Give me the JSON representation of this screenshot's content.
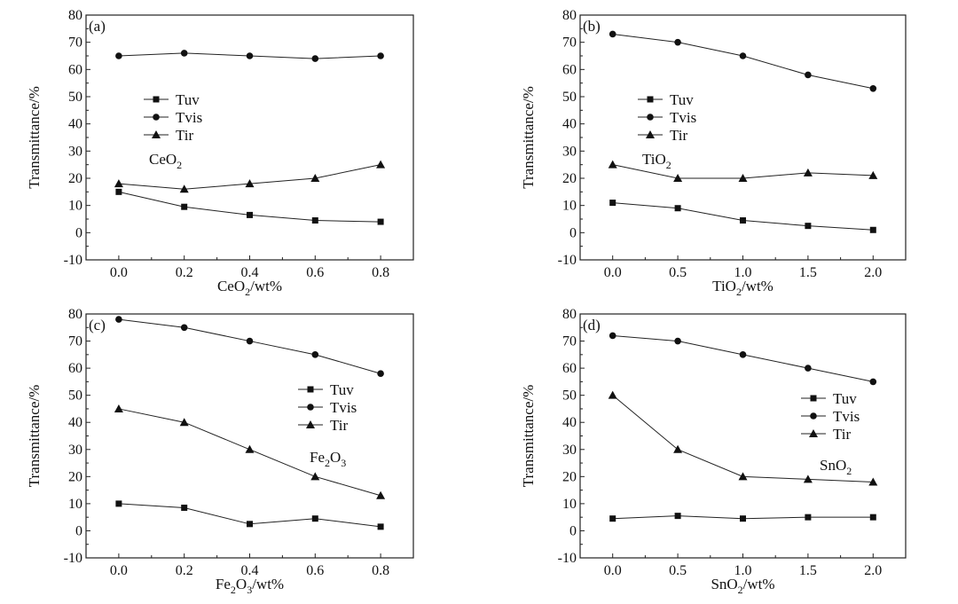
{
  "chart_data": [
    {
      "type": "line",
      "panel_label": "(a)",
      "compound": "CeO2",
      "xlabel": "CeO2/wt%",
      "ylabel": "Transmittance/%",
      "x": [
        0.0,
        0.2,
        0.4,
        0.6,
        0.8
      ],
      "xticks": [
        "0.0",
        "0.2",
        "0.4",
        "0.6",
        "0.8"
      ],
      "xlim": [
        -0.1,
        0.9
      ],
      "ylim": [
        -10,
        80
      ],
      "yticks": [
        "-10",
        "0",
        "10",
        "20",
        "30",
        "40",
        "50",
        "60",
        "70",
        "80"
      ],
      "legend": [
        "Tuv",
        "Tvis",
        "Tir"
      ],
      "series": [
        {
          "name": "Tuv",
          "marker": "square",
          "values": [
            15,
            9.5,
            6.5,
            4.5,
            4
          ]
        },
        {
          "name": "Tvis",
          "marker": "circle",
          "values": [
            65,
            66,
            65,
            64,
            65
          ]
        },
        {
          "name": "Tir",
          "marker": "triangle",
          "values": [
            18,
            16,
            18,
            20,
            25
          ]
        }
      ]
    },
    {
      "type": "line",
      "panel_label": "(b)",
      "compound": "TiO2",
      "xlabel": "TiO2/wt%",
      "ylabel": "Transmittance/%",
      "x": [
        0.0,
        0.5,
        1.0,
        1.5,
        2.0
      ],
      "xticks": [
        "0.0",
        "0.5",
        "1.0",
        "1.5",
        "2.0"
      ],
      "xlim": [
        -0.25,
        2.25
      ],
      "ylim": [
        -10,
        80
      ],
      "yticks": [
        "-10",
        "0",
        "10",
        "20",
        "30",
        "40",
        "50",
        "60",
        "70",
        "80"
      ],
      "legend": [
        "Tuv",
        "Tvis",
        "Tir"
      ],
      "series": [
        {
          "name": "Tuv",
          "marker": "square",
          "values": [
            11,
            9,
            4.5,
            2.5,
            1
          ]
        },
        {
          "name": "Tvis",
          "marker": "circle",
          "values": [
            73,
            70,
            65,
            58,
            53
          ]
        },
        {
          "name": "Tir",
          "marker": "triangle",
          "values": [
            25,
            20,
            20,
            22,
            21
          ]
        }
      ]
    },
    {
      "type": "line",
      "panel_label": "(c)",
      "compound": "Fe2O3",
      "xlabel": "Fe2O3/wt%",
      "ylabel": "Transmittance/%",
      "x": [
        0.0,
        0.2,
        0.4,
        0.6,
        0.8
      ],
      "xticks": [
        "0.0",
        "0.2",
        "0.4",
        "0.6",
        "0.8"
      ],
      "xlim": [
        -0.1,
        0.9
      ],
      "ylim": [
        -10,
        80
      ],
      "yticks": [
        "-10",
        "0",
        "10",
        "20",
        "30",
        "40",
        "50",
        "60",
        "70",
        "80"
      ],
      "legend": [
        "Tuv",
        "Tvis",
        "Tir"
      ],
      "series": [
        {
          "name": "Tuv",
          "marker": "square",
          "values": [
            10,
            8.5,
            2.5,
            4.5,
            1.5
          ]
        },
        {
          "name": "Tvis",
          "marker": "circle",
          "values": [
            78,
            75,
            70,
            65,
            58
          ]
        },
        {
          "name": "Tir",
          "marker": "triangle",
          "values": [
            45,
            40,
            30,
            20,
            13
          ]
        }
      ]
    },
    {
      "type": "line",
      "panel_label": "(d)",
      "compound": "SnO2",
      "xlabel": "SnO2/wt%",
      "ylabel": "Transmittance/%",
      "x": [
        0.0,
        0.5,
        1.0,
        1.5,
        2.0
      ],
      "xticks": [
        "0.0",
        "0.5",
        "1.0",
        "1.5",
        "2.0"
      ],
      "xlim": [
        -0.25,
        2.25
      ],
      "ylim": [
        -10,
        80
      ],
      "yticks": [
        "-10",
        "0",
        "10",
        "20",
        "30",
        "40",
        "50",
        "60",
        "70",
        "80"
      ],
      "legend": [
        "Tuv",
        "Tvis",
        "Tir"
      ],
      "series": [
        {
          "name": "Tuv",
          "marker": "square",
          "values": [
            4.5,
            5.5,
            4.5,
            5,
            5
          ]
        },
        {
          "name": "Tvis",
          "marker": "circle",
          "values": [
            72,
            70,
            65,
            60,
            55
          ]
        },
        {
          "name": "Tir",
          "marker": "triangle",
          "values": [
            50,
            30,
            20,
            19,
            18
          ]
        }
      ]
    }
  ]
}
